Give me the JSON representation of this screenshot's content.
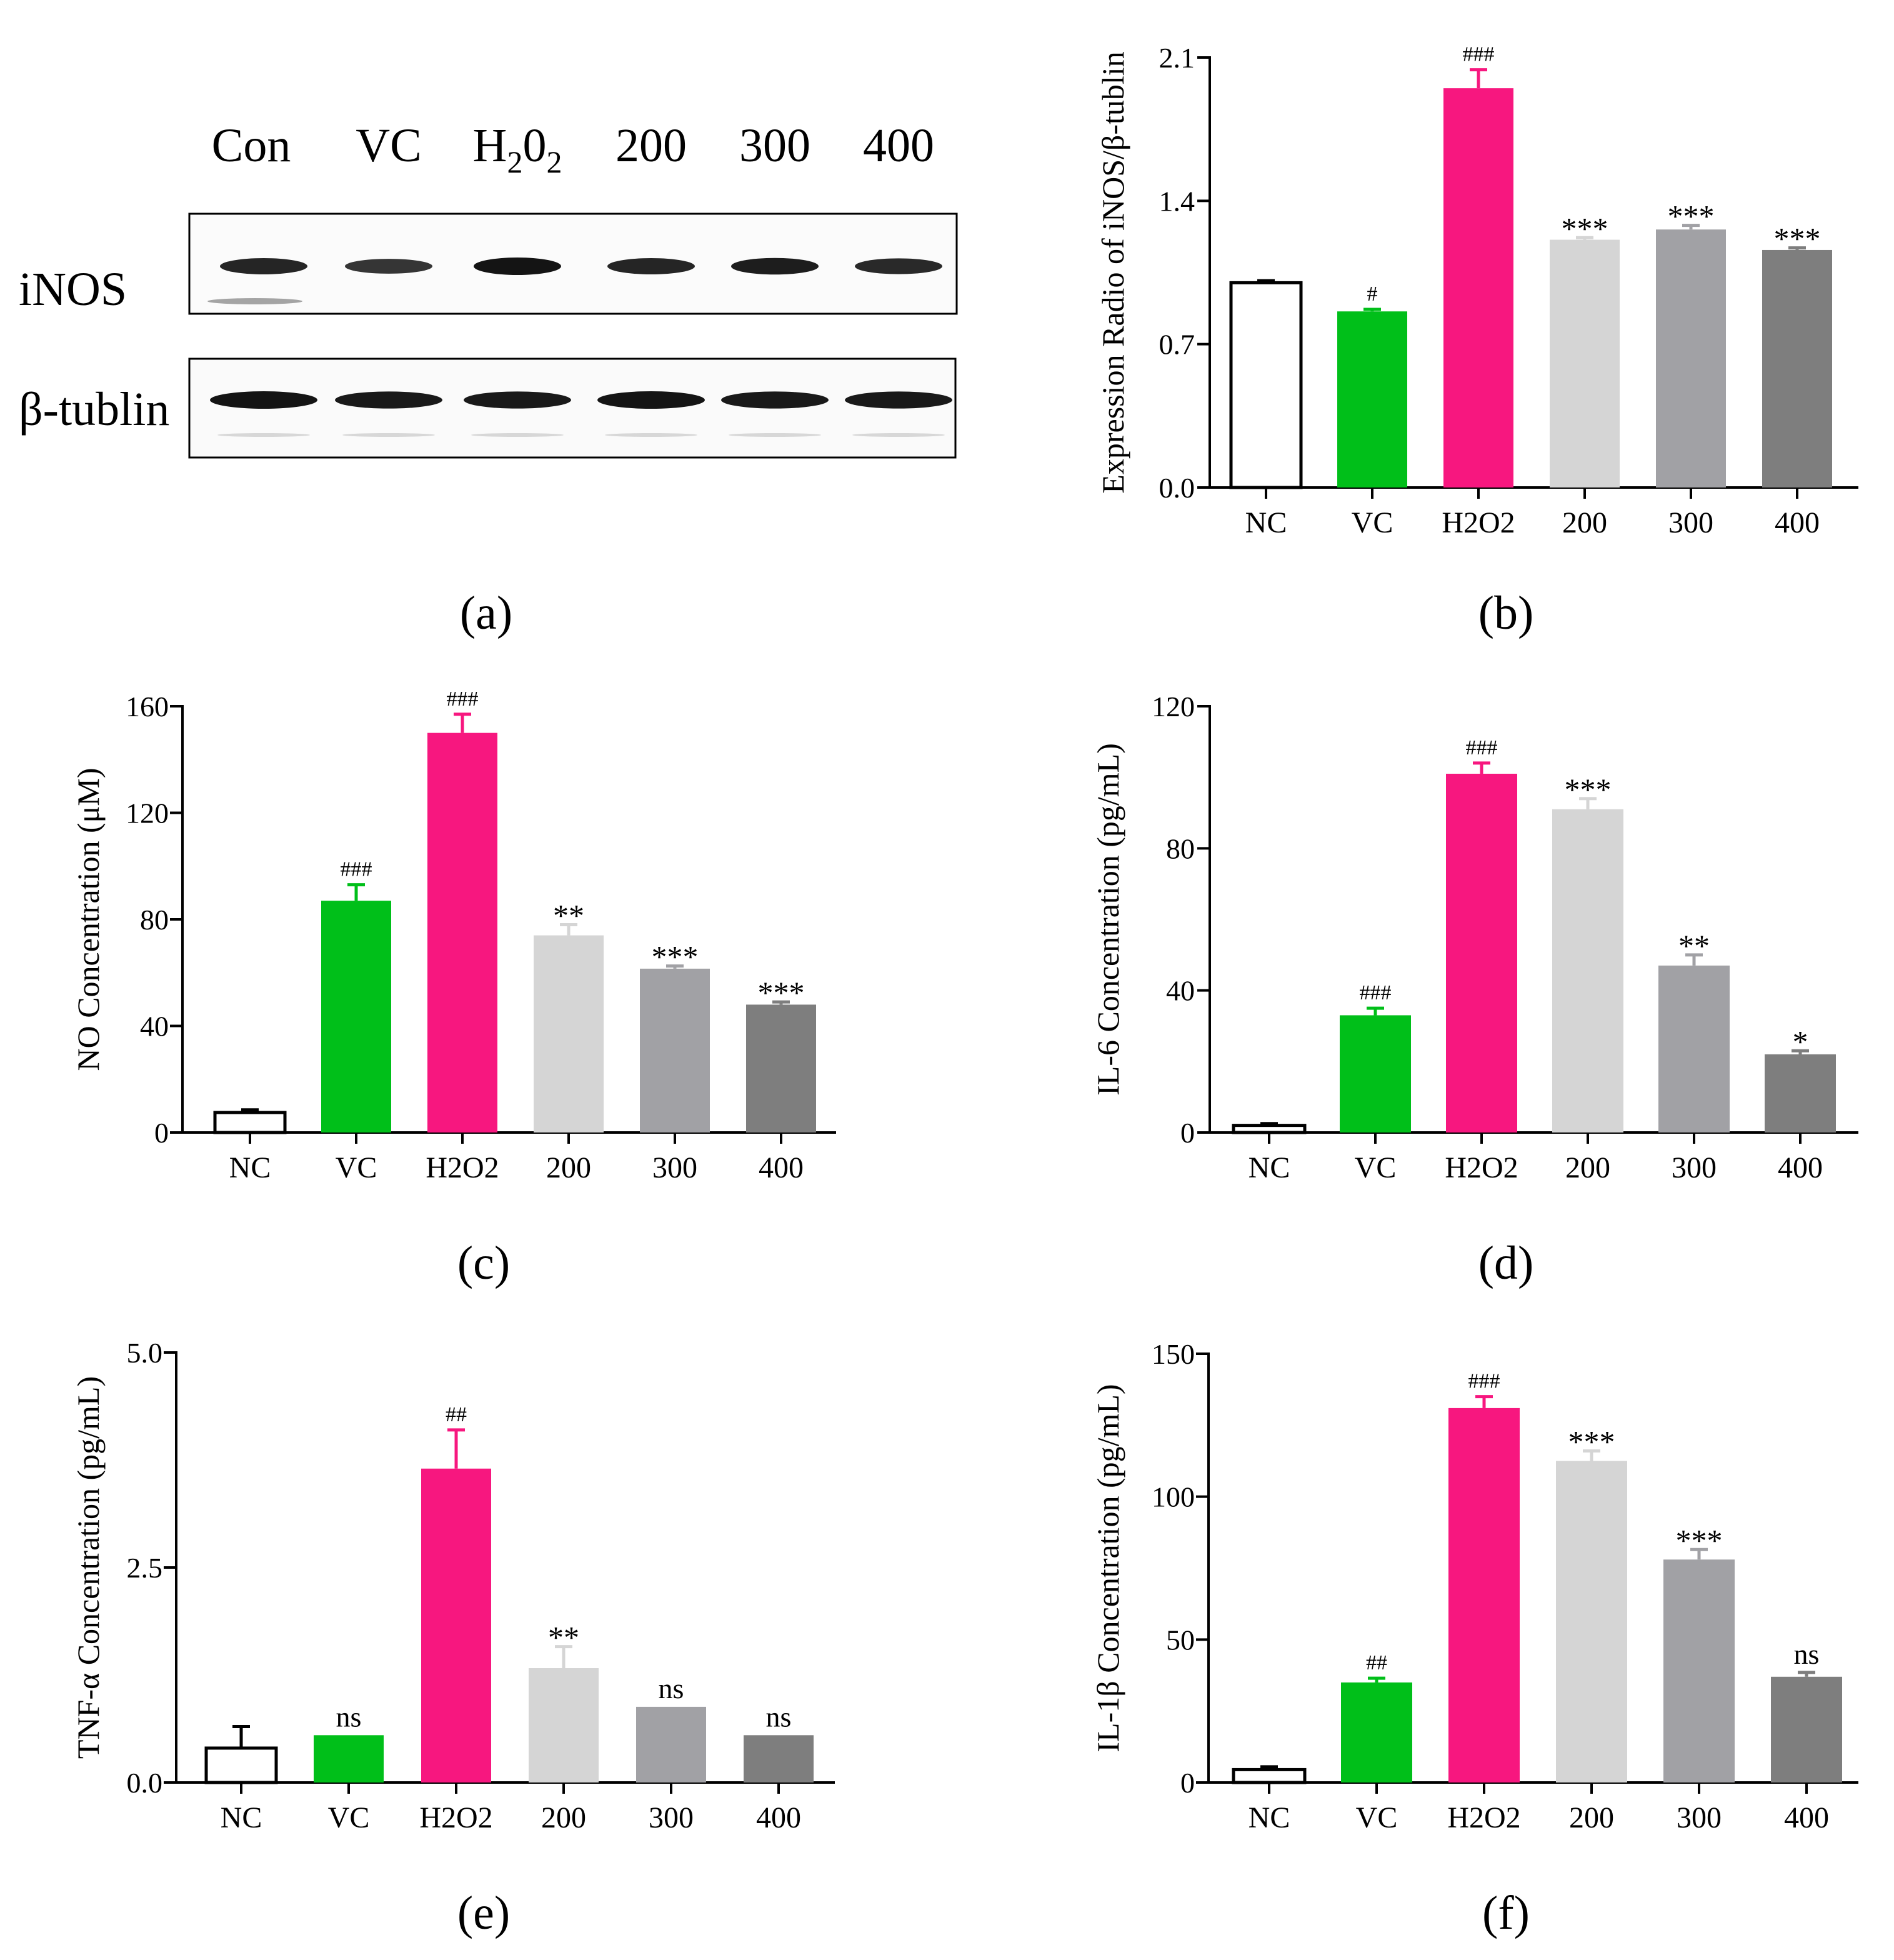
{
  "colors": {
    "NC": "#ffffff",
    "VC": "#00bf19",
    "H2O2": "#f7177f",
    "200": "#d5d5d5",
    "300": "#a1a1a5",
    "400": "#7e7e7e",
    "axis": "#000000",
    "band": "#141414"
  },
  "western_blot": {
    "panel_label": "(a)",
    "lane_labels": [
      "Con",
      "VC",
      "H",
      "200",
      "300",
      "400"
    ],
    "h2o2_label": {
      "base": "H",
      "sub1": "2",
      "mid": "0",
      "sub2": "2"
    },
    "rows": [
      {
        "name": "iNOS",
        "band_intensity": [
          0.85,
          0.7,
          1.0,
          0.85,
          0.9,
          0.8
        ]
      },
      {
        "name": "β-tublin",
        "band_intensity": [
          1.0,
          0.95,
          0.95,
          1.0,
          0.95,
          0.95
        ]
      }
    ]
  },
  "chart_data": [
    {
      "id": "b",
      "type": "bar",
      "panel_label": "(b)",
      "ylabel": "Expression Radio of iNOS/β-tublin",
      "categories": [
        "NC",
        "VC",
        "H2O2",
        "200",
        "300",
        "400"
      ],
      "values": [
        1.0,
        0.86,
        1.95,
        1.21,
        1.26,
        1.16
      ],
      "errors": [
        0.01,
        0.01,
        0.09,
        0.01,
        0.02,
        0.01
      ],
      "annotations": [
        "",
        "#",
        "###",
        "***",
        "***",
        "***"
      ],
      "ylim": [
        0,
        2.1
      ],
      "ticks": [
        0.0,
        0.7,
        1.4,
        2.1
      ],
      "tick_labels": [
        "0.0",
        "0.7",
        "1.4",
        "2.1"
      ]
    },
    {
      "id": "c",
      "type": "bar",
      "panel_label": "(c)",
      "ylabel": "NO Concentration (μM)",
      "categories": [
        "NC",
        "VC",
        "H2O2",
        "200",
        "300",
        "400"
      ],
      "values": [
        7.5,
        87,
        150,
        74,
        61.5,
        48
      ],
      "errors": [
        1,
        6,
        7,
        4,
        1,
        1
      ],
      "annotations": [
        "",
        "###",
        "###",
        "**",
        "***",
        "***"
      ],
      "ylim": [
        0,
        160
      ],
      "ticks": [
        0,
        40,
        80,
        120,
        160
      ],
      "tick_labels": [
        "0",
        "40",
        "80",
        "120",
        "160"
      ]
    },
    {
      "id": "d",
      "type": "bar",
      "panel_label": "(d)",
      "ylabel": "IL-6 Concentration (pg/mL)",
      "categories": [
        "NC",
        "VC",
        "H2O2",
        "200",
        "300",
        "400"
      ],
      "values": [
        2,
        33,
        101,
        91,
        47,
        22
      ],
      "errors": [
        0.5,
        2,
        3,
        3,
        3,
        1
      ],
      "annotations": [
        "",
        "###",
        "###",
        "***",
        "**",
        "*"
      ],
      "ylim": [
        0,
        120
      ],
      "ticks": [
        0,
        40,
        80,
        120
      ],
      "tick_labels": [
        "0",
        "40",
        "80",
        "120"
      ]
    },
    {
      "id": "e",
      "type": "bar",
      "panel_label": "(e)",
      "ylabel": "TNF-α Concentration (pg/mL)",
      "categories": [
        "NC",
        "VC",
        "H2O2",
        "200",
        "300",
        "400"
      ],
      "values": [
        0.4,
        0.55,
        3.65,
        1.33,
        0.88,
        0.55
      ],
      "errors": [
        0.25,
        0,
        0.45,
        0.25,
        0,
        0
      ],
      "annotations": [
        "",
        "ns",
        "##",
        "**",
        "ns",
        "ns"
      ],
      "ylim": [
        0,
        5
      ],
      "ticks": [
        0,
        2.5,
        5
      ],
      "tick_labels": [
        "0.0",
        "2.5",
        "5.0"
      ]
    },
    {
      "id": "f",
      "type": "bar",
      "panel_label": "(f)",
      "ylabel": "IL-1β Concentration (pg/mL)",
      "categories": [
        "NC",
        "VC",
        "H2O2",
        "200",
        "300",
        "400"
      ],
      "values": [
        4.5,
        35,
        131,
        112.5,
        78,
        37
      ],
      "errors": [
        1,
        1.5,
        4,
        3.5,
        3.5,
        1.5
      ],
      "annotations": [
        "",
        "##",
        "###",
        "***",
        "***",
        "ns"
      ],
      "ylim": [
        0,
        150
      ],
      "ticks": [
        0,
        50,
        100,
        150
      ],
      "tick_labels": [
        "0",
        "50",
        "100",
        "150"
      ]
    }
  ]
}
